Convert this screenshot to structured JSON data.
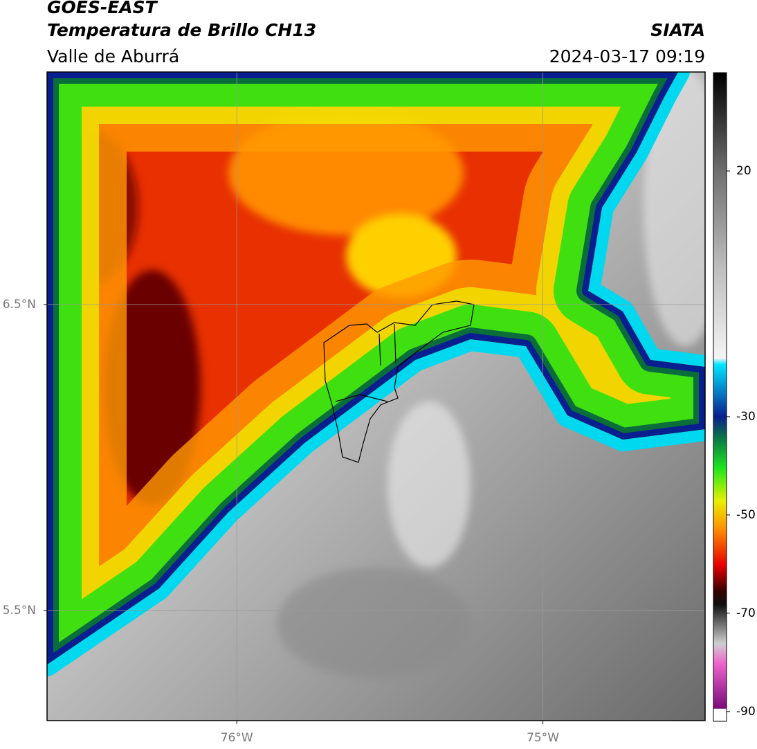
{
  "header": {
    "title": "GOES-EAST",
    "subtitle": "Temperatura de Brillo CH13",
    "region": "Valle de Aburrá",
    "source": "SIATA",
    "datetime": "2024-03-17 09:19"
  },
  "map": {
    "xlim": [
      -76.62,
      -74.47
    ],
    "ylim": [
      5.14,
      7.26
    ],
    "xticks": [
      {
        "value": -76,
        "label": "76°W"
      },
      {
        "value": -75,
        "label": "75°W"
      }
    ],
    "yticks": [
      {
        "value": 5.5,
        "label": "5.5°N"
      },
      {
        "value": 6.5,
        "label": "6.5°N"
      }
    ],
    "grid": true
  },
  "colorbar": {
    "lim": [
      -92,
      40
    ],
    "ticks": [
      20,
      -30,
      -50,
      -70,
      -90
    ]
  }
}
